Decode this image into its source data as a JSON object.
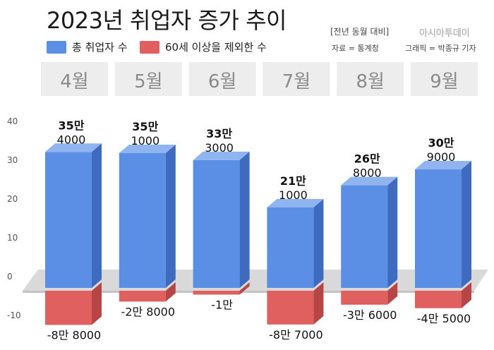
{
  "header": {
    "title": "2023년 취업자 증가 추이",
    "legend_total": "총 취업자 수",
    "legend_ex60": "60세 이상을 제외한 수",
    "note": "[전년 동월 대비]",
    "source": "자료 = 통계청",
    "logo": "아시아투데이",
    "credit": "그래픽 = 박종규 기자"
  },
  "chart_data": {
    "type": "bar",
    "title": "2023년 취업자 증가 추이",
    "categories": [
      "4월",
      "5월",
      "6월",
      "7월",
      "8월",
      "9월"
    ],
    "series": [
      {
        "name": "총 취업자 수",
        "color": "#5b8fe6",
        "values": [
          354000,
          351000,
          333000,
          211000,
          268000,
          309000
        ],
        "labels_top": [
          "35만",
          "35만",
          "33만",
          "21만",
          "26만",
          "30만"
        ],
        "labels_bottom": [
          "4000",
          "1000",
          "3000",
          "1000",
          "8000",
          "9000"
        ]
      },
      {
        "name": "60세 이상을 제외한 수",
        "color": "#e0605f",
        "values": [
          -88000,
          -28000,
          -10000,
          -87000,
          -36000,
          -45000
        ],
        "labels": [
          "-8만 8000",
          "-2만 8000",
          "-1만",
          "-8만 7000",
          "-3만 6000",
          "-4만 5000"
        ]
      }
    ],
    "y_unit": "만",
    "yticks": [
      40,
      30,
      20,
      10,
      0,
      -10
    ],
    "ylim": [
      -10,
      40
    ]
  }
}
